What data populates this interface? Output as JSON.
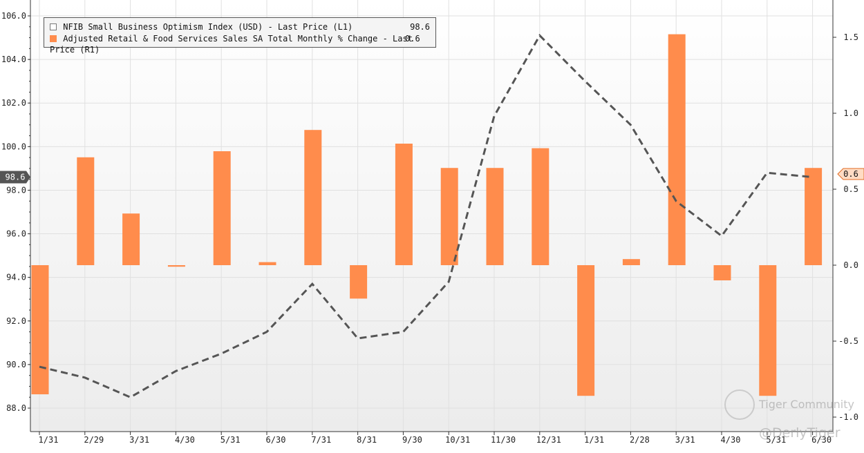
{
  "chart_data": {
    "type": "bar+line",
    "categories": [
      "1/31",
      "2/29",
      "3/31",
      "4/30",
      "5/31",
      "6/30",
      "7/31",
      "8/31",
      "9/30",
      "10/31",
      "11/30",
      "12/31",
      "1/31",
      "2/28",
      "3/31",
      "4/30",
      "5/31",
      "6/30"
    ],
    "line_series": {
      "name": "NFIB Small Business Optimism Index (USD) - Last Price (L1)",
      "last_value": "98.6",
      "axis": "left",
      "style": "dashed",
      "color": "#555555",
      "values": [
        89.9,
        89.4,
        88.5,
        89.7,
        90.5,
        91.5,
        93.7,
        91.2,
        91.5,
        93.8,
        101.4,
        105.1,
        103.0,
        101.0,
        97.5,
        95.9,
        98.8,
        98.6
      ]
    },
    "bar_series": {
      "name": "Adjusted Retail & Food Services Sales SA Total Monthly % Change - Last Price (R1)",
      "last_value": "0.6",
      "axis": "right",
      "color": "#ff8c4c",
      "values": [
        -0.85,
        0.71,
        0.34,
        -0.01,
        0.75,
        0.02,
        0.89,
        -0.22,
        0.8,
        0.64,
        0.64,
        0.77,
        -0.86,
        0.04,
        1.52,
        -0.1,
        -0.86,
        0.64
      ]
    },
    "left_axis": {
      "ylim": [
        87.5,
        106.8
      ],
      "ticks": [
        "88.0",
        "90.0",
        "92.0",
        "94.0",
        "96.0",
        "98.0",
        "100.0",
        "102.0",
        "104.0",
        "106.0"
      ],
      "last_price_marker": "98.6"
    },
    "right_axis": {
      "ylim": [
        -1.1,
        1.75
      ],
      "ticks": [
        "-1.0",
        "-0.5",
        "0.0",
        "0.5",
        "1.0",
        "1.5"
      ],
      "last_price_marker": "0.6"
    },
    "grid": true,
    "legend_position": "top-left"
  },
  "watermarks": {
    "brand": "Tiger Community",
    "handle": "@DerlyTiger"
  }
}
